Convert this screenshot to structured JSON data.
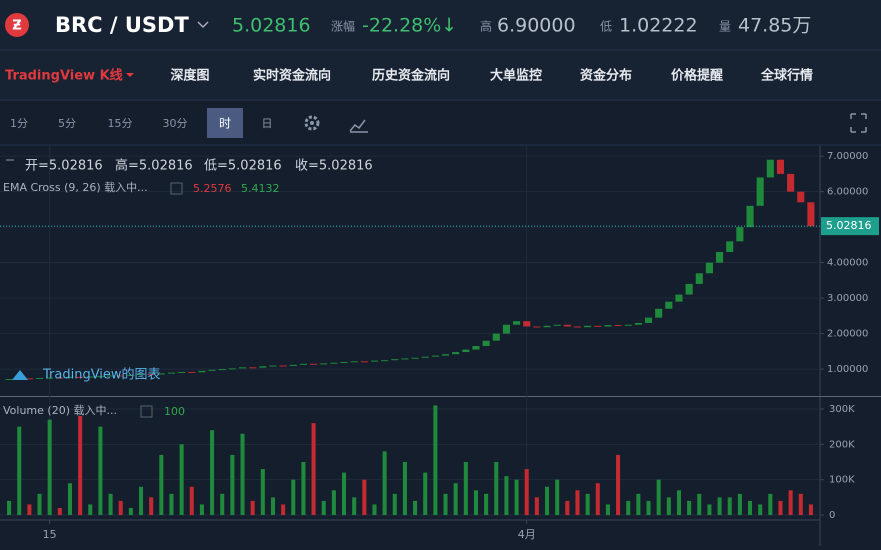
{
  "header": {
    "pair": "BRC / USDT",
    "price": "5.02816",
    "change_label": "涨幅",
    "change": "-22.28%↓",
    "high_label": "高",
    "high": "6.90000",
    "low_label": "低",
    "low": "1.02222",
    "volume_label": "量",
    "volume": "47.85万"
  },
  "tabs": [
    "TradingView K线",
    "深度图",
    "实时资金流向",
    "历史资金流向",
    "大单监控",
    "资金分布",
    "价格提醒",
    "全球行情"
  ],
  "intervals": [
    "1分",
    "5分",
    "15分",
    "30分",
    "时",
    "日"
  ],
  "chart_data": {
    "type": "candlestick",
    "legend": [
      "开=5.02816",
      "高=5.02816",
      "低=5.02816",
      "收=5.02816"
    ],
    "ema_label": "EMA Cross (9, 26) 载入中...",
    "ema_values": [
      "5.2576",
      "5.4132"
    ],
    "volume_label": "Volume (20) 载入中...",
    "volume_value": "100",
    "watermark": "TradingView的图表",
    "categories": [
      null,
      null,
      null,
      null,
      "15",
      null,
      null,
      null,
      null,
      null,
      null,
      null,
      null,
      null,
      null,
      null,
      null,
      null,
      null,
      null,
      null,
      null,
      null,
      null,
      null,
      null,
      null,
      null,
      null,
      null,
      null,
      null,
      null,
      null,
      null,
      null,
      null,
      null,
      null,
      null,
      null,
      null,
      null,
      null,
      null,
      null,
      null,
      null,
      null,
      null,
      null,
      "4月",
      null,
      null,
      null,
      null,
      null,
      null,
      null,
      null,
      null,
      null,
      null,
      null,
      null,
      null,
      null,
      null,
      null,
      null,
      null,
      null,
      null,
      null,
      null,
      null,
      null,
      null,
      null,
      null
    ],
    "closes": [
      0.72,
      0.74,
      0.73,
      0.75,
      0.76,
      0.75,
      0.78,
      0.77,
      0.79,
      0.8,
      0.82,
      0.81,
      0.84,
      0.86,
      0.85,
      0.88,
      0.9,
      0.92,
      0.91,
      0.95,
      0.98,
      1.0,
      1.02,
      1.05,
      1.04,
      1.08,
      1.1,
      1.09,
      1.12,
      1.15,
      1.14,
      1.16,
      1.18,
      1.2,
      1.22,
      1.21,
      1.24,
      1.25,
      1.28,
      1.3,
      1.32,
      1.35,
      1.38,
      1.42,
      1.48,
      1.55,
      1.65,
      1.8,
      2.0,
      2.25,
      2.35,
      2.2,
      2.18,
      2.22,
      2.25,
      2.2,
      2.18,
      2.22,
      2.2,
      2.24,
      2.22,
      2.25,
      2.3,
      2.45,
      2.7,
      2.9,
      3.1,
      3.4,
      3.7,
      4.0,
      4.3,
      4.6,
      5.0,
      5.6,
      6.4,
      6.9,
      6.5,
      6.0,
      5.7,
      5.02816
    ],
    "volumes": [
      40000,
      250000,
      30000,
      60000,
      270000,
      20000,
      90000,
      280000,
      30000,
      250000,
      60000,
      40000,
      20000,
      80000,
      50000,
      170000,
      60000,
      200000,
      80000,
      30000,
      240000,
      60000,
      170000,
      230000,
      40000,
      130000,
      50000,
      30000,
      100000,
      150000,
      260000,
      40000,
      70000,
      120000,
      50000,
      100000,
      30000,
      180000,
      60000,
      150000,
      40000,
      120000,
      310000,
      60000,
      90000,
      150000,
      70000,
      60000,
      150000,
      110000,
      100000,
      130000,
      50000,
      80000,
      100000,
      40000,
      70000,
      60000,
      90000,
      30000,
      170000,
      40000,
      60000,
      40000,
      100000,
      50000,
      70000,
      40000,
      60000,
      30000,
      50000,
      50000,
      60000,
      40000,
      30000,
      60000,
      40000,
      70000,
      60000,
      30000
    ],
    "up_color": "#1f8a3c",
    "down_color": "#c42a30",
    "last_price": 5.02816,
    "last_price_label": "5.02816",
    "ylim": [
      0.27,
      7.23
    ],
    "yticks": [
      {
        "value": 1,
        "label": "1.00000"
      },
      {
        "value": 2,
        "label": "2.00000"
      },
      {
        "value": 3,
        "label": "3.00000"
      },
      {
        "value": 4,
        "label": "4.00000"
      },
      {
        "value": 5,
        "label": "5.00000"
      },
      {
        "value": 6,
        "label": "6.00000"
      },
      {
        "value": 7,
        "label": "7.00000"
      }
    ],
    "y2lim": [
      -14000,
      331000
    ],
    "y2ticks": [
      0,
      {
        "value": 100000,
        "label": "100K"
      },
      {
        "value": 200000,
        "label": "200K"
      },
      {
        "value": 300000,
        "label": "300K"
      }
    ],
    "grid": true
  }
}
